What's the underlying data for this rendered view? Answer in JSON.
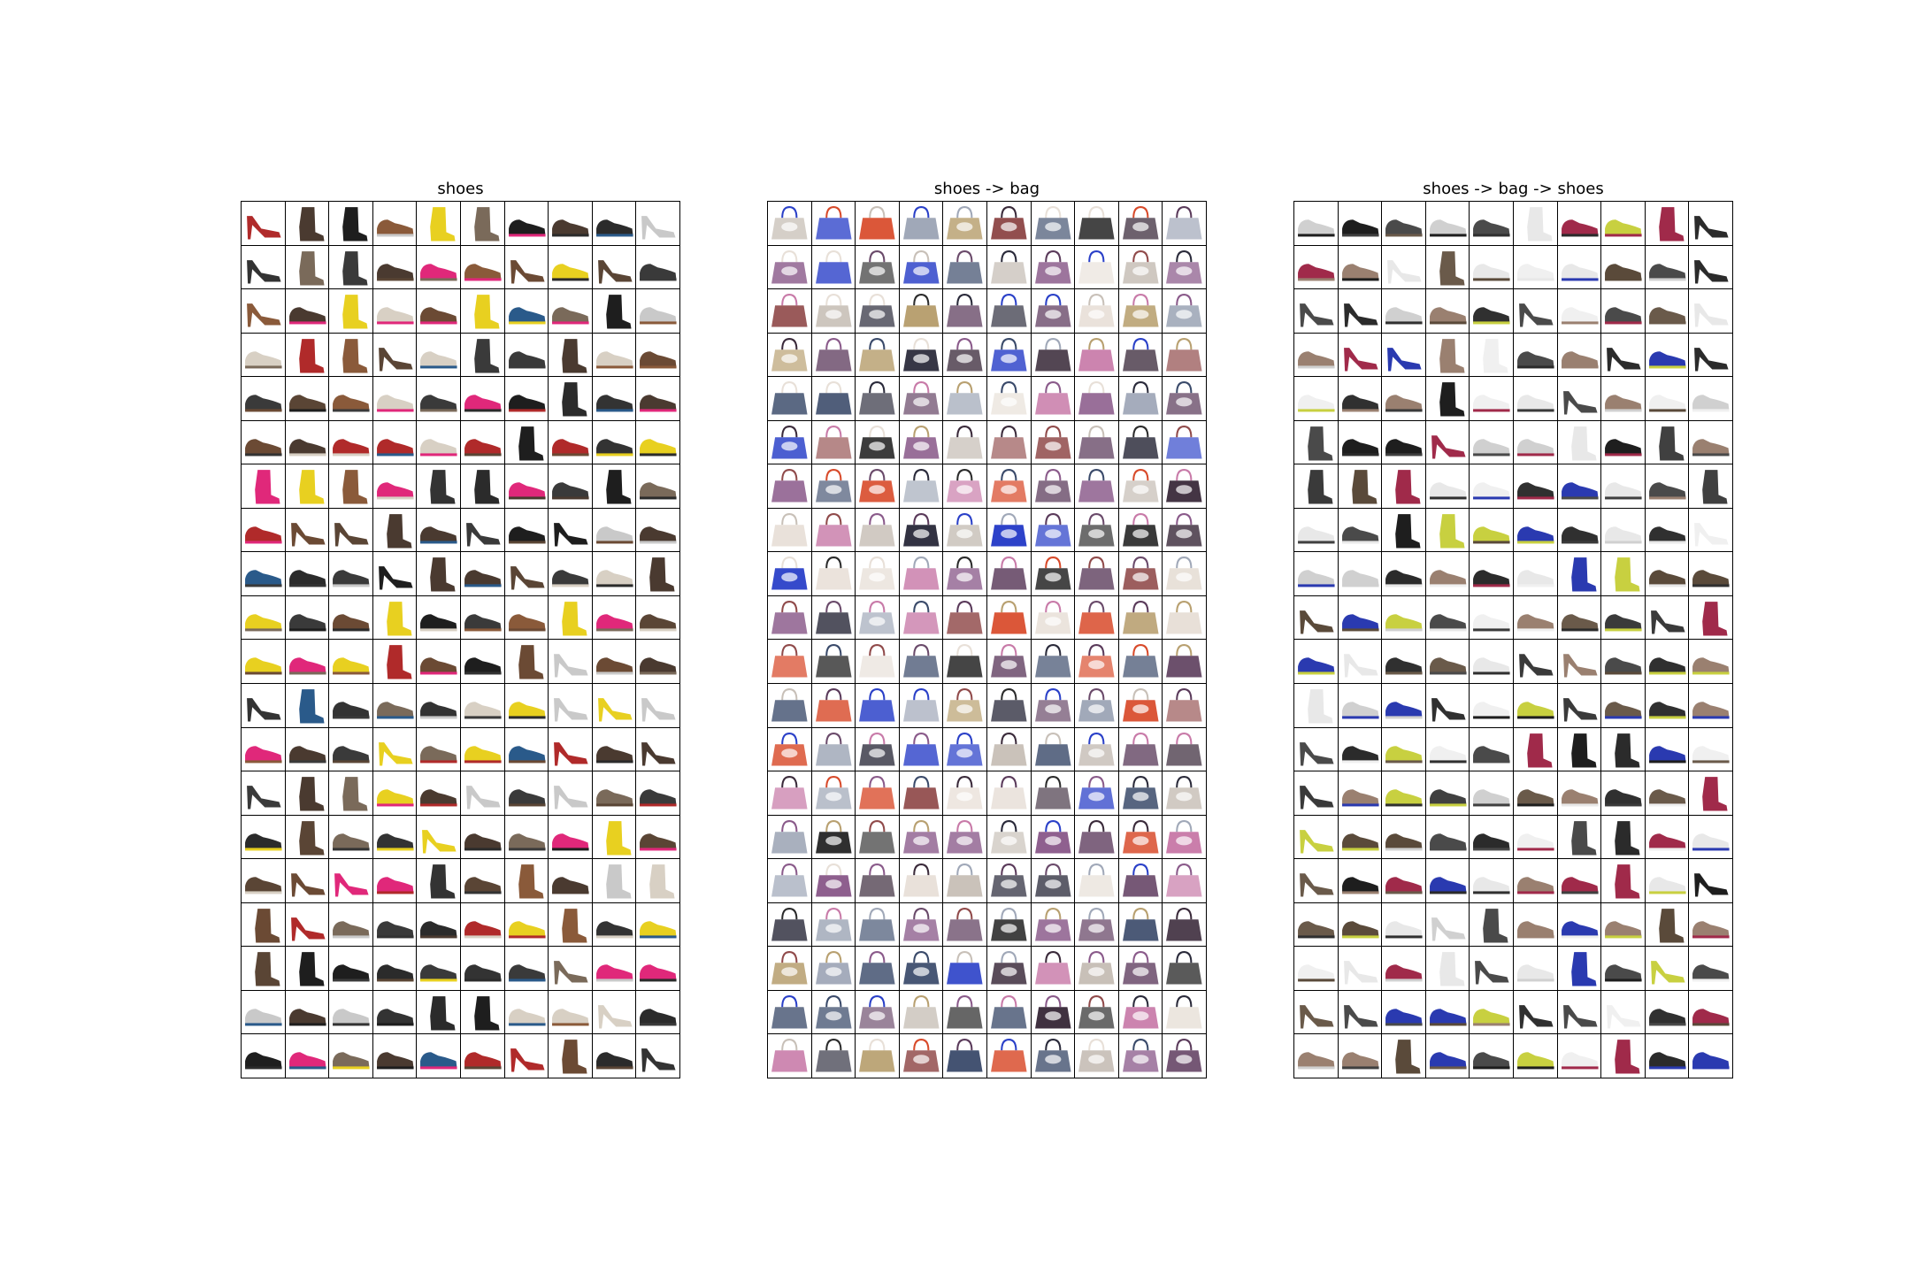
{
  "panels": [
    {
      "id": "shoes",
      "title": "shoes",
      "kind": "shoe",
      "palette": [
        "#2b2b2b",
        "#4a3a30",
        "#6b4a34",
        "#1e1e1e",
        "#8a5a3a",
        "#c9c9c9",
        "#b02a2a",
        "#333333",
        "#5a4535",
        "#d8d0c4",
        "#e0287a",
        "#e8d020",
        "#2a5a8a",
        "#7a6a5a",
        "#3a3a3a"
      ]
    },
    {
      "id": "shoes-to-bag",
      "title": "shoes -> bag",
      "kind": "bag",
      "palette": [
        "#3a2a3a",
        "#8a5a8a",
        "#c87aa8",
        "#2a2a3a",
        "#d84a2a",
        "#c8c0b8",
        "#3a4a6a",
        "#6a4a6a",
        "#a0a8b8",
        "#2b2b2b",
        "#2a40c8",
        "#b8a070",
        "#904a4a",
        "#e8e0d8",
        "#5a3a5a"
      ]
    },
    {
      "id": "shoes-to-bag-to-shoes",
      "title": "shoes -> bag -> shoes",
      "kind": "shoe",
      "palette": [
        "#2b2b2b",
        "#3a3a3a",
        "#e8e8e8",
        "#1e1e1e",
        "#5a4a3a",
        "#d0d0d0",
        "#4a4a4a",
        "#6a5a4a",
        "#f0f0f0",
        "#303030",
        "#2a3ab0",
        "#9a8070",
        "#a02a4a",
        "#c8d040",
        "#404040"
      ]
    }
  ],
  "grid": {
    "cols": 10,
    "rows": 20
  }
}
